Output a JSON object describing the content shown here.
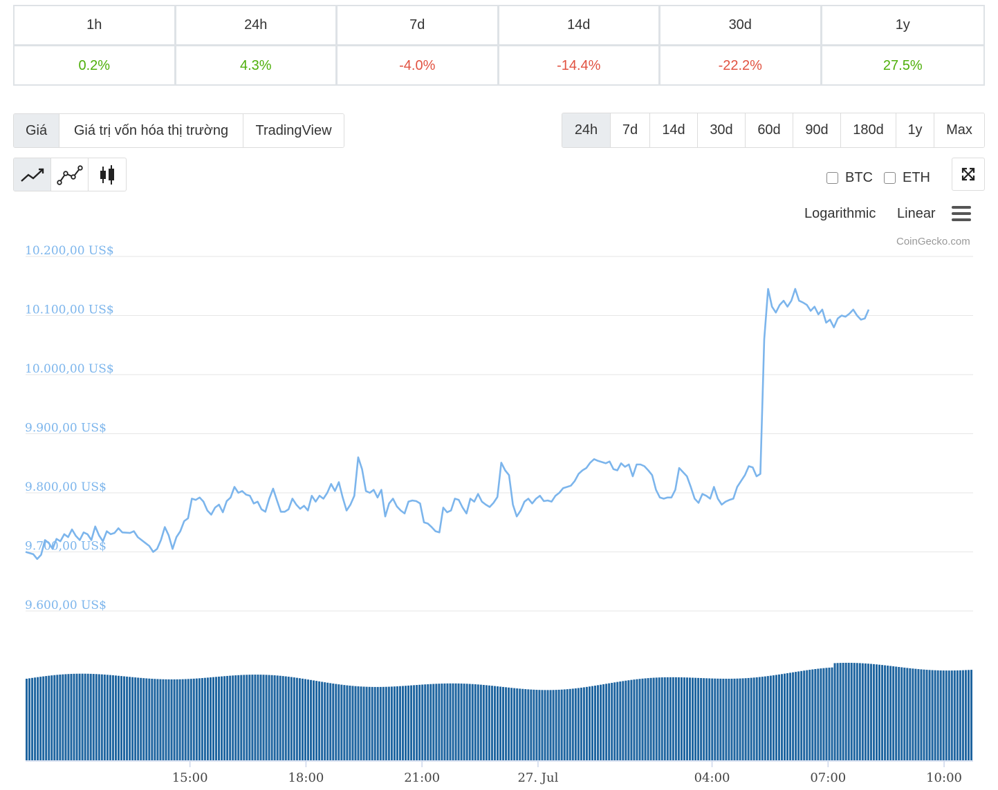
{
  "performance": [
    {
      "label": "1h",
      "value": "0.2%",
      "trend": "pos"
    },
    {
      "label": "24h",
      "value": "4.3%",
      "trend": "pos"
    },
    {
      "label": "7d",
      "value": "-4.0%",
      "trend": "neg"
    },
    {
      "label": "14d",
      "value": "-14.4%",
      "trend": "neg"
    },
    {
      "label": "30d",
      "value": "-22.2%",
      "trend": "neg"
    },
    {
      "label": "1y",
      "value": "27.5%",
      "trend": "pos"
    }
  ],
  "main_tabs": [
    {
      "label": "Giá",
      "active": true
    },
    {
      "label": "Giá trị vốn hóa thị trường",
      "active": false
    },
    {
      "label": "TradingView",
      "active": false
    }
  ],
  "range_tabs": [
    {
      "label": "24h",
      "active": true
    },
    {
      "label": "7d"
    },
    {
      "label": "14d"
    },
    {
      "label": "30d"
    },
    {
      "label": "60d"
    },
    {
      "label": "90d"
    },
    {
      "label": "180d"
    },
    {
      "label": "1y"
    },
    {
      "label": "Max"
    }
  ],
  "chart_type_icons": [
    "line-chart-icon",
    "point-line-chart-icon",
    "candlestick-icon"
  ],
  "compare": {
    "btc": "BTC",
    "eth": "ETH"
  },
  "scale": {
    "log": "Logarithmic",
    "linear": "Linear"
  },
  "credit": "CoinGecko.com",
  "colors": {
    "line": "#7cb5ec",
    "volume": "#1f65a0",
    "positive": "#4eaf0a",
    "negative": "#e15241"
  },
  "chart_data": {
    "type": "line",
    "ylabels": [
      "10.200,00 US$",
      "10.100,00 US$",
      "10.000,00 US$",
      "9.900,00 US$",
      "9.800,00 US$",
      "9.700,00 US$",
      "9.600,00 US$"
    ],
    "yticks": [
      10200,
      10100,
      10000,
      9900,
      9800,
      9700,
      9600
    ],
    "ylim": [
      9600,
      10200
    ],
    "xlabels": [
      "15:00",
      "18:00",
      "21:00",
      "27. Jul",
      "04:00",
      "07:00",
      "10:00"
    ],
    "xlim": [
      0,
      24.5
    ],
    "xticks": [
      4.25,
      7.25,
      10.25,
      13.25,
      17.75,
      20.75,
      23.75
    ],
    "series": [
      {
        "kind": "price",
        "points": [
          [
            0,
            9700
          ],
          [
            0.2,
            9696
          ],
          [
            0.3,
            9688
          ],
          [
            0.4,
            9695
          ],
          [
            0.5,
            9720
          ],
          [
            0.6,
            9715
          ],
          [
            0.7,
            9705
          ],
          [
            0.8,
            9722
          ],
          [
            0.9,
            9718
          ],
          [
            1,
            9730
          ],
          [
            1.1,
            9725
          ],
          [
            1.2,
            9738
          ],
          [
            1.3,
            9727
          ],
          [
            1.4,
            9720
          ],
          [
            1.5,
            9733
          ],
          [
            1.6,
            9730
          ],
          [
            1.7,
            9720
          ],
          [
            1.8,
            9743
          ],
          [
            1.9,
            9728
          ],
          [
            2,
            9718
          ],
          [
            2.1,
            9735
          ],
          [
            2.2,
            9730
          ],
          [
            2.3,
            9732
          ],
          [
            2.4,
            9740
          ],
          [
            2.5,
            9733
          ],
          [
            2.7,
            9732
          ],
          [
            2.8,
            9735
          ],
          [
            2.9,
            9725
          ],
          [
            3.1,
            9715
          ],
          [
            3.2,
            9710
          ],
          [
            3.3,
            9700
          ],
          [
            3.4,
            9705
          ],
          [
            3.5,
            9720
          ],
          [
            3.6,
            9742
          ],
          [
            3.7,
            9728
          ],
          [
            3.8,
            9705
          ],
          [
            3.9,
            9725
          ],
          [
            4,
            9735
          ],
          [
            4.1,
            9752
          ],
          [
            4.2,
            9757
          ],
          [
            4.3,
            9790
          ],
          [
            4.4,
            9788
          ],
          [
            4.5,
            9792
          ],
          [
            4.6,
            9785
          ],
          [
            4.7,
            9770
          ],
          [
            4.8,
            9763
          ],
          [
            4.9,
            9775
          ],
          [
            5,
            9780
          ],
          [
            5.1,
            9767
          ],
          [
            5.2,
            9786
          ],
          [
            5.3,
            9792
          ],
          [
            5.4,
            9810
          ],
          [
            5.5,
            9800
          ],
          [
            5.6,
            9803
          ],
          [
            5.7,
            9797
          ],
          [
            5.8,
            9795
          ],
          [
            5.9,
            9782
          ],
          [
            6,
            9785
          ],
          [
            6.1,
            9772
          ],
          [
            6.2,
            9768
          ],
          [
            6.3,
            9790
          ],
          [
            6.4,
            9807
          ],
          [
            6.5,
            9787
          ],
          [
            6.6,
            9768
          ],
          [
            6.7,
            9768
          ],
          [
            6.8,
            9772
          ],
          [
            6.9,
            9790
          ],
          [
            7,
            9780
          ],
          [
            7.1,
            9773
          ],
          [
            7.2,
            9778
          ],
          [
            7.3,
            9770
          ],
          [
            7.4,
            9795
          ],
          [
            7.5,
            9785
          ],
          [
            7.6,
            9795
          ],
          [
            7.7,
            9790
          ],
          [
            7.8,
            9800
          ],
          [
            7.9,
            9815
          ],
          [
            8,
            9803
          ],
          [
            8.1,
            9818
          ],
          [
            8.2,
            9792
          ],
          [
            8.3,
            9770
          ],
          [
            8.4,
            9780
          ],
          [
            8.5,
            9795
          ],
          [
            8.6,
            9860
          ],
          [
            8.7,
            9840
          ],
          [
            8.8,
            9803
          ],
          [
            8.9,
            9800
          ],
          [
            9,
            9805
          ],
          [
            9.1,
            9792
          ],
          [
            9.2,
            9805
          ],
          [
            9.3,
            9760
          ],
          [
            9.4,
            9782
          ],
          [
            9.5,
            9790
          ],
          [
            9.6,
            9777
          ],
          [
            9.7,
            9770
          ],
          [
            9.8,
            9765
          ],
          [
            9.9,
            9785
          ],
          [
            10,
            9787
          ],
          [
            10.1,
            9786
          ],
          [
            10.2,
            9782
          ],
          [
            10.3,
            9750
          ],
          [
            10.4,
            9748
          ],
          [
            10.5,
            9742
          ],
          [
            10.6,
            9735
          ],
          [
            10.7,
            9733
          ],
          [
            10.8,
            9775
          ],
          [
            10.9,
            9767
          ],
          [
            11,
            9770
          ],
          [
            11.1,
            9790
          ],
          [
            11.2,
            9788
          ],
          [
            11.3,
            9775
          ],
          [
            11.4,
            9765
          ],
          [
            11.5,
            9790
          ],
          [
            11.6,
            9785
          ],
          [
            11.7,
            9798
          ],
          [
            11.8,
            9785
          ],
          [
            11.9,
            9780
          ],
          [
            12,
            9776
          ],
          [
            12.1,
            9783
          ],
          [
            12.2,
            9793
          ],
          [
            12.3,
            9851
          ],
          [
            12.4,
            9838
          ],
          [
            12.5,
            9830
          ],
          [
            12.6,
            9780
          ],
          [
            12.7,
            9760
          ],
          [
            12.8,
            9770
          ],
          [
            12.9,
            9785
          ],
          [
            13,
            9790
          ],
          [
            13.1,
            9782
          ],
          [
            13.2,
            9790
          ],
          [
            13.3,
            9795
          ],
          [
            13.4,
            9786
          ],
          [
            13.5,
            9787
          ],
          [
            13.6,
            9785
          ],
          [
            13.7,
            9795
          ],
          [
            13.8,
            9800
          ],
          [
            13.9,
            9808
          ],
          [
            14,
            9810
          ],
          [
            14.1,
            9812
          ],
          [
            14.2,
            9820
          ],
          [
            14.3,
            9832
          ],
          [
            14.4,
            9838
          ],
          [
            14.5,
            9842
          ],
          [
            14.6,
            9851
          ],
          [
            14.7,
            9857
          ],
          [
            14.8,
            9854
          ],
          [
            14.9,
            9852
          ],
          [
            15,
            9850
          ],
          [
            15.1,
            9853
          ],
          [
            15.2,
            9840
          ],
          [
            15.3,
            9838
          ],
          [
            15.4,
            9850
          ],
          [
            15.5,
            9844
          ],
          [
            15.6,
            9848
          ],
          [
            15.7,
            9828
          ],
          [
            15.8,
            9848
          ],
          [
            15.9,
            9848
          ],
          [
            16,
            9845
          ],
          [
            16.1,
            9838
          ],
          [
            16.2,
            9830
          ],
          [
            16.3,
            9805
          ],
          [
            16.4,
            9792
          ],
          [
            16.5,
            9790
          ],
          [
            16.6,
            9792
          ],
          [
            16.7,
            9792
          ],
          [
            16.8,
            9805
          ],
          [
            16.9,
            9842
          ],
          [
            17,
            9835
          ],
          [
            17.1,
            9828
          ],
          [
            17.2,
            9810
          ],
          [
            17.3,
            9790
          ],
          [
            17.4,
            9783
          ],
          [
            17.5,
            9798
          ],
          [
            17.6,
            9795
          ],
          [
            17.7,
            9790
          ],
          [
            17.8,
            9810
          ],
          [
            17.9,
            9790
          ],
          [
            18,
            9780
          ],
          [
            18.1,
            9785
          ],
          [
            18.2,
            9788
          ],
          [
            18.3,
            9790
          ],
          [
            18.4,
            9810
          ],
          [
            18.5,
            9820
          ],
          [
            18.6,
            9830
          ],
          [
            18.7,
            9845
          ],
          [
            18.8,
            9843
          ],
          [
            18.9,
            9828
          ],
          [
            19,
            9832
          ],
          [
            19.1,
            10060
          ],
          [
            19.2,
            10145
          ],
          [
            19.3,
            10115
          ],
          [
            19.4,
            10105
          ],
          [
            19.5,
            10118
          ],
          [
            19.6,
            10125
          ],
          [
            19.7,
            10115
          ],
          [
            19.8,
            10125
          ],
          [
            19.9,
            10145
          ],
          [
            20,
            10125
          ],
          [
            20.1,
            10122
          ],
          [
            20.2,
            10118
          ],
          [
            20.3,
            10108
          ],
          [
            20.4,
            10115
          ],
          [
            20.5,
            10102
          ],
          [
            20.6,
            10110
          ],
          [
            20.7,
            10088
          ],
          [
            20.8,
            10093
          ],
          [
            20.9,
            10080
          ],
          [
            21,
            10095
          ],
          [
            21.1,
            10100
          ],
          [
            21.2,
            10098
          ],
          [
            21.3,
            10103
          ],
          [
            21.4,
            10110
          ],
          [
            21.5,
            10100
          ],
          [
            21.6,
            10093
          ],
          [
            21.7,
            10095
          ],
          [
            21.8,
            10110
          ]
        ]
      },
      {
        "kind": "volume"
      }
    ]
  }
}
